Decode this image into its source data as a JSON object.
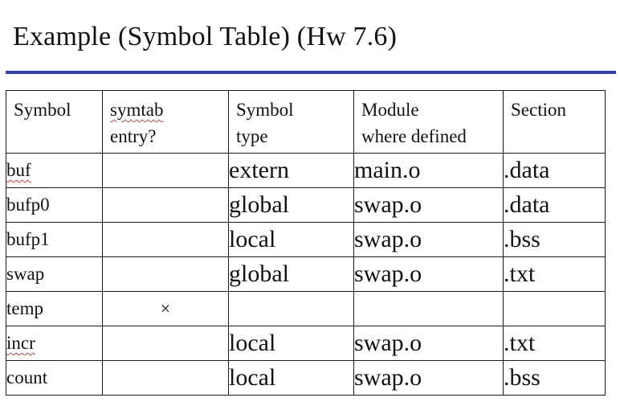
{
  "title": "Example (Symbol Table) (Hw 7.6)",
  "colors": {
    "title_rule": "#3040b4",
    "spellcheck_underline": "#d33a3a"
  },
  "table": {
    "headers": {
      "symbol": "Symbol",
      "entry_line1": "symtab",
      "entry_line2": "entry?",
      "type_line1": "Symbol",
      "type_line2": "type",
      "module_line1": "Module",
      "module_line2": "where defined",
      "section": "Section"
    },
    "rows": [
      {
        "symbol": "buf",
        "entry": "",
        "type": "extern",
        "module": "main.o",
        "section": ".data",
        "spellcheck": true
      },
      {
        "symbol": "bufp0",
        "entry": "",
        "type": "global",
        "module": "swap.o",
        "section": ".data",
        "spellcheck": false
      },
      {
        "symbol": "bufp1",
        "entry": "",
        "type": "local",
        "module": "swap.o",
        "section": ".bss",
        "spellcheck": false
      },
      {
        "symbol": "swap",
        "entry": "",
        "type": "global",
        "module": "swap.o",
        "section": ".txt",
        "spellcheck": false
      },
      {
        "symbol": "temp",
        "entry": "×",
        "type": "",
        "module": "",
        "section": "",
        "spellcheck": false
      },
      {
        "symbol": "incr",
        "entry": "",
        "type": "local",
        "module": "swap.o",
        "section": ".txt",
        "spellcheck": true
      },
      {
        "symbol": "count",
        "entry": "",
        "type": "local",
        "module": "swap.o",
        "section": ".bss",
        "spellcheck": false
      }
    ]
  }
}
